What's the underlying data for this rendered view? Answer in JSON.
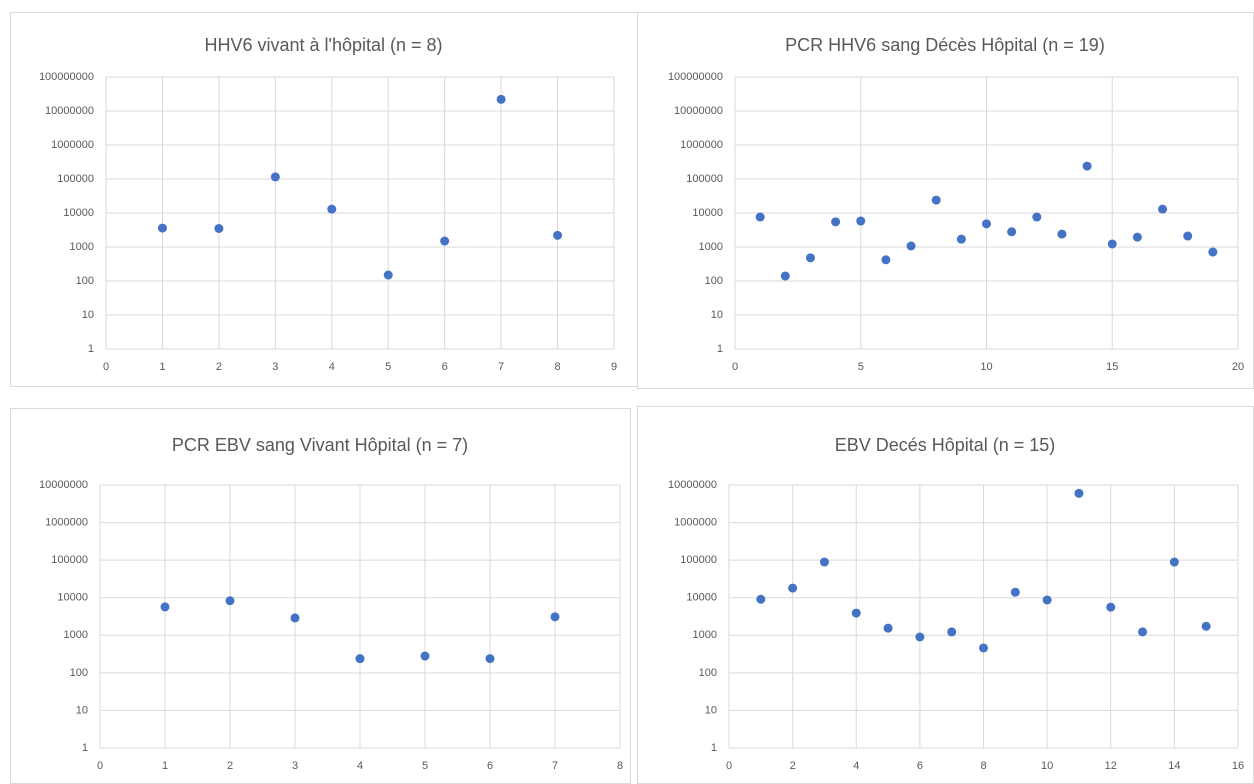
{
  "chart_data": [
    {
      "type": "scatter",
      "title": "HHV6 vivant à l'hôpital (n = 8)",
      "color": "#4472c4",
      "log_y": true,
      "grid": true,
      "x": [
        1,
        2,
        3,
        4,
        5,
        6,
        7,
        8
      ],
      "values": [
        3600,
        3500,
        115000,
        13000,
        150,
        1500,
        22000000,
        2200
      ],
      "xlim": [
        0,
        9
      ],
      "xticks": [
        0,
        1,
        2,
        3,
        4,
        5,
        6,
        7,
        8,
        9
      ],
      "ylim": [
        1,
        100000000
      ],
      "yticks": [
        1,
        10,
        100,
        1000,
        10000,
        100000,
        1000000,
        10000000,
        100000000
      ]
    },
    {
      "type": "scatter",
      "title": "PCR HHV6 sang Décès Hôpital (n = 19)",
      "color": "#4472c4",
      "log_y": true,
      "grid": true,
      "x": [
        1,
        2,
        3,
        4,
        5,
        6,
        7,
        8,
        9,
        10,
        11,
        12,
        13,
        14,
        15,
        16,
        17,
        18,
        19
      ],
      "values": [
        7600,
        140,
        480,
        5500,
        5800,
        420,
        1070,
        24000,
        1700,
        4800,
        2800,
        7600,
        2400,
        240000,
        1230,
        1950,
        13000,
        2100,
        710
      ],
      "xlim": [
        0,
        20
      ],
      "xticks": [
        0,
        5,
        10,
        15,
        20
      ],
      "ylim": [
        1,
        100000000
      ],
      "yticks": [
        1,
        10,
        100,
        1000,
        10000,
        100000,
        1000000,
        10000000,
        100000000
      ]
    },
    {
      "type": "scatter",
      "title": "PCR EBV sang Vivant Hôpital (n = 7)",
      "color": "#4472c4",
      "log_y": true,
      "grid": true,
      "x": [
        1,
        2,
        3,
        4,
        5,
        6,
        7
      ],
      "values": [
        5700,
        8300,
        2900,
        240,
        280,
        240,
        3100
      ],
      "xlim": [
        0,
        8
      ],
      "xticks": [
        0,
        1,
        2,
        3,
        4,
        5,
        6,
        7,
        8
      ],
      "ylim": [
        1,
        10000000
      ],
      "yticks": [
        1,
        10,
        100,
        1000,
        10000,
        100000,
        1000000,
        10000000
      ]
    },
    {
      "type": "scatter",
      "title": "EBV Decés Hôpital (n = 15)",
      "color": "#4472c4",
      "log_y": true,
      "grid": true,
      "x": [
        1,
        2,
        3,
        4,
        5,
        6,
        7,
        8,
        9,
        10,
        11,
        12,
        13,
        14,
        15
      ],
      "values": [
        9100,
        18000,
        89000,
        3900,
        1550,
        900,
        1230,
        460,
        14000,
        8700,
        6000000,
        5600,
        1230,
        89000,
        1740
      ],
      "xlim": [
        0,
        16
      ],
      "xticks": [
        0,
        2,
        4,
        6,
        8,
        10,
        12,
        14,
        16
      ],
      "ylim": [
        1,
        10000000
      ],
      "yticks": [
        1,
        10,
        100,
        1000,
        10000,
        100000,
        1000000,
        10000000
      ]
    }
  ]
}
